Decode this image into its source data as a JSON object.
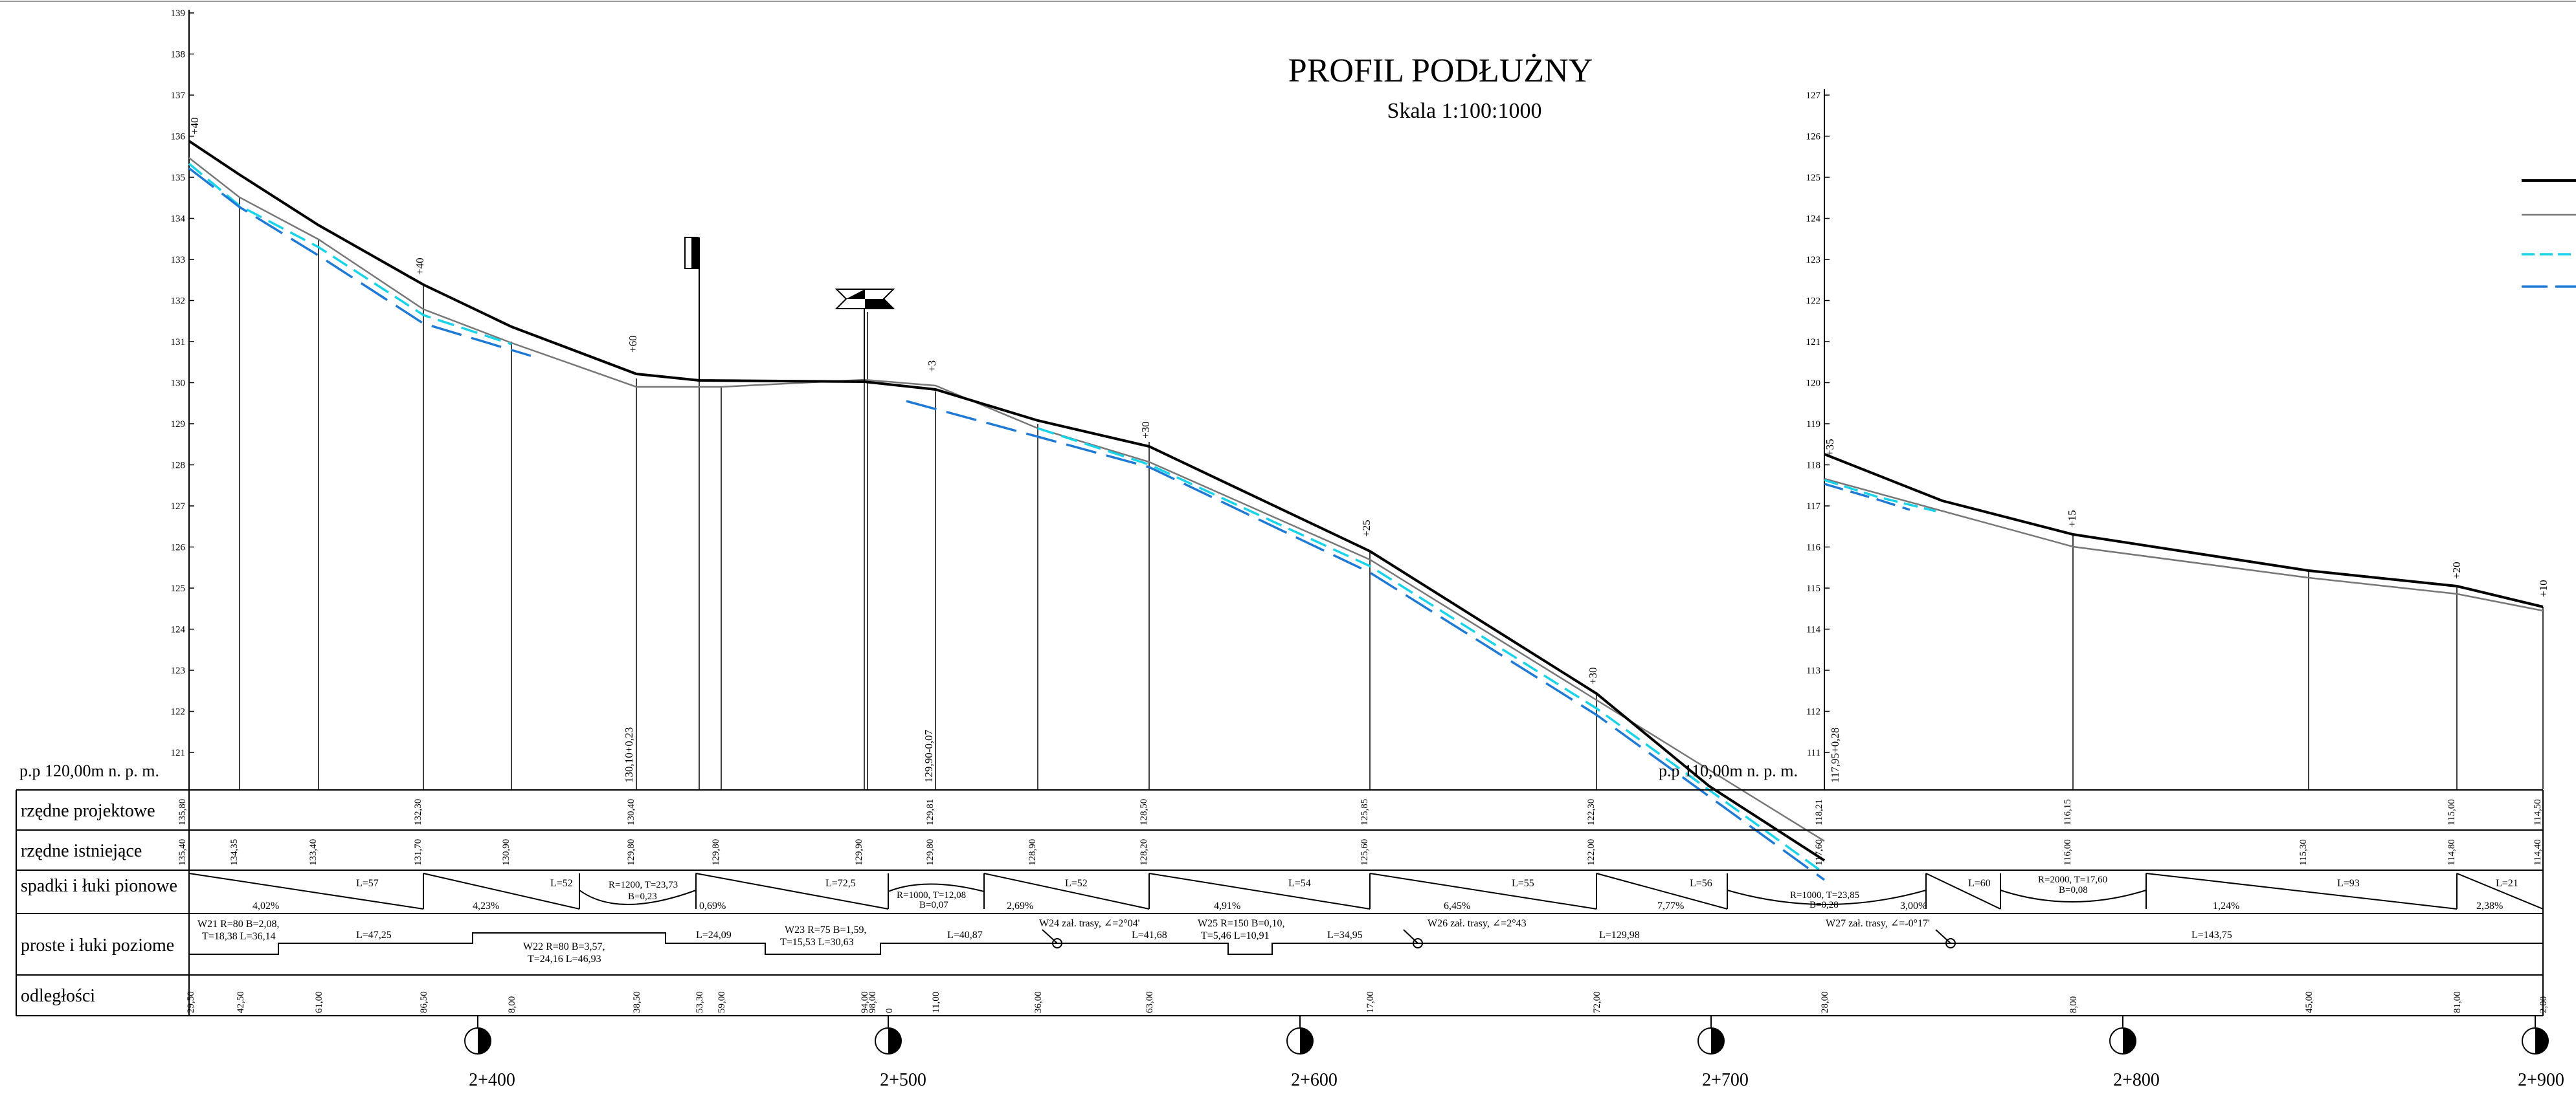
{
  "title": "PROFIL PODŁUŻNY",
  "scale": "Skala 1:100:1000",
  "left_axis_ticks": [
    "121",
    "122",
    "123",
    "124",
    "125",
    "126",
    "127",
    "128",
    "129",
    "130",
    "131",
    "132",
    "133",
    "134",
    "135",
    "136",
    "137",
    "138",
    "139"
  ],
  "right_axis_ticks": [
    "111",
    "112",
    "113",
    "114",
    "115",
    "116",
    "117",
    "118",
    "119",
    "120",
    "121",
    "122",
    "123",
    "124",
    "125",
    "126",
    "127"
  ],
  "datum_left": "p.p 120,00m n. p. m.",
  "datum_right": "p.p 110,00m n. p. m.",
  "row_labels": {
    "designed": "rzędne projektowe",
    "existing": "rzędne istniejące",
    "grades": "spadki i łuki pionowe",
    "horizontal": "proste i łuki poziome",
    "distances": "odległości"
  },
  "designed_elevations": [
    "135,80",
    "132,30",
    "130,40",
    "129,81",
    "128,50",
    "125,85",
    "122,30",
    "118,21",
    "116,15",
    "115,00",
    "114,50"
  ],
  "existing_elevations": [
    "135,40",
    "134,35",
    "133,40",
    "131,70",
    "130,90",
    "129,80",
    "129,80",
    "129,90",
    "129,80",
    "128,90",
    "128,20",
    "125,60",
    "122,00",
    "117,60",
    "116,00",
    "115,30",
    "114,80",
    "114,40"
  ],
  "grade_segments": [
    {
      "length": "L=57",
      "grade": "4,02%"
    },
    {
      "length": "L=52",
      "grade": "4,23%"
    },
    {
      "length": "R=1200, T=23,73",
      "grade": "B=0,23"
    },
    {
      "length": "L=72,5",
      "grade": "0,69%"
    },
    {
      "length": "R=1000, T=12,08",
      "grade": "B=0,07"
    },
    {
      "length": "L=52",
      "grade": "2,69%"
    },
    {
      "length": "L=54",
      "grade": "4,91%"
    },
    {
      "length": "L=55",
      "grade": "6,45%"
    },
    {
      "length": "L=56",
      "grade": "7,77%"
    },
    {
      "length": "R=1000, T=23,85",
      "grade": "B=0,28"
    },
    {
      "length": "L=60",
      "grade": "3,00%"
    },
    {
      "length": "R=2000, T=17,60",
      "grade": "B=0,08"
    },
    {
      "length": "L=93",
      "grade": "1,24%"
    },
    {
      "length": "L=21",
      "grade": "2,38%"
    }
  ],
  "horizontal_items": {
    "w21a": "W21 R=80 B=2,08,",
    "w21b": "T=18,38 L=36,14",
    "l4725": "L=47,25",
    "w22a": "W22 R=80 B=3,57,",
    "w22b": "T=24,16 L=46,93",
    "l2409": "L=24,09",
    "w23a": "W23 R=75 B=1,59,",
    "w23b": "T=15,53 L=30,63",
    "l4087": "L=40,87",
    "w24": "W24 zał. trasy, ∠=2°04'",
    "l4168": "L=41,68",
    "w25a": "W25 R=150 B=0,10,",
    "w25b": "T=5,46 L=10,91",
    "l3495": "L=34,95",
    "w26": "W26 zał. trasy, ∠=2°43",
    "l12998": "L=129,98",
    "w27": "W27 zał. trasy, ∠=-0°17'",
    "l14375": "L=143,75"
  },
  "distances": [
    "29,50",
    "42,50",
    "61,00",
    "86,50",
    "8,00",
    "38,50",
    "53,30",
    "59,00",
    "94,00",
    "98,00",
    "0",
    "11,00",
    "36,00",
    "63,00",
    "17,00",
    "72,00",
    "28,00",
    "8,00",
    "45,00",
    "81,00",
    "2,00"
  ],
  "chainages": [
    "2+400",
    "2+500",
    "2+600",
    "2+700",
    "2+800",
    "2+900"
  ],
  "profile_labels": {
    "plus40a": "+40",
    "plus40b": "+40",
    "plus60": "+60",
    "plus3": "+3",
    "plus30a": "+30",
    "plus25": "+25",
    "plus30b": "+30",
    "plus35": "+35",
    "plus15": "+15",
    "plus20": "+20",
    "plus10": "+10",
    "v1": "130,10+0,23",
    "v2": "129,90-0,07",
    "v3": "117,95+0,28"
  },
  "colors": {
    "design_line": "#000000",
    "existing_line": "#777777",
    "cyan_dashed": "#19d3e8",
    "blue_dashed": "#1f7ad6"
  }
}
